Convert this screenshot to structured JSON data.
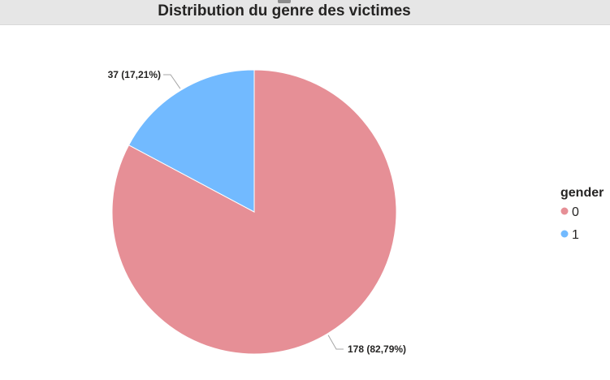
{
  "title": "Distribution du genre des victimes",
  "chart_data": {
    "type": "pie",
    "title": "Distribution du genre des victimes",
    "categories": [
      "0",
      "1"
    ],
    "values": [
      178,
      37
    ],
    "labels": [
      "178 (82,79%)",
      "37 (17,21%)"
    ],
    "colors": [
      "#e68f96",
      "#72baff"
    ],
    "legend": {
      "title": "gender",
      "items": [
        "0",
        "1"
      ],
      "placement": "right"
    }
  }
}
